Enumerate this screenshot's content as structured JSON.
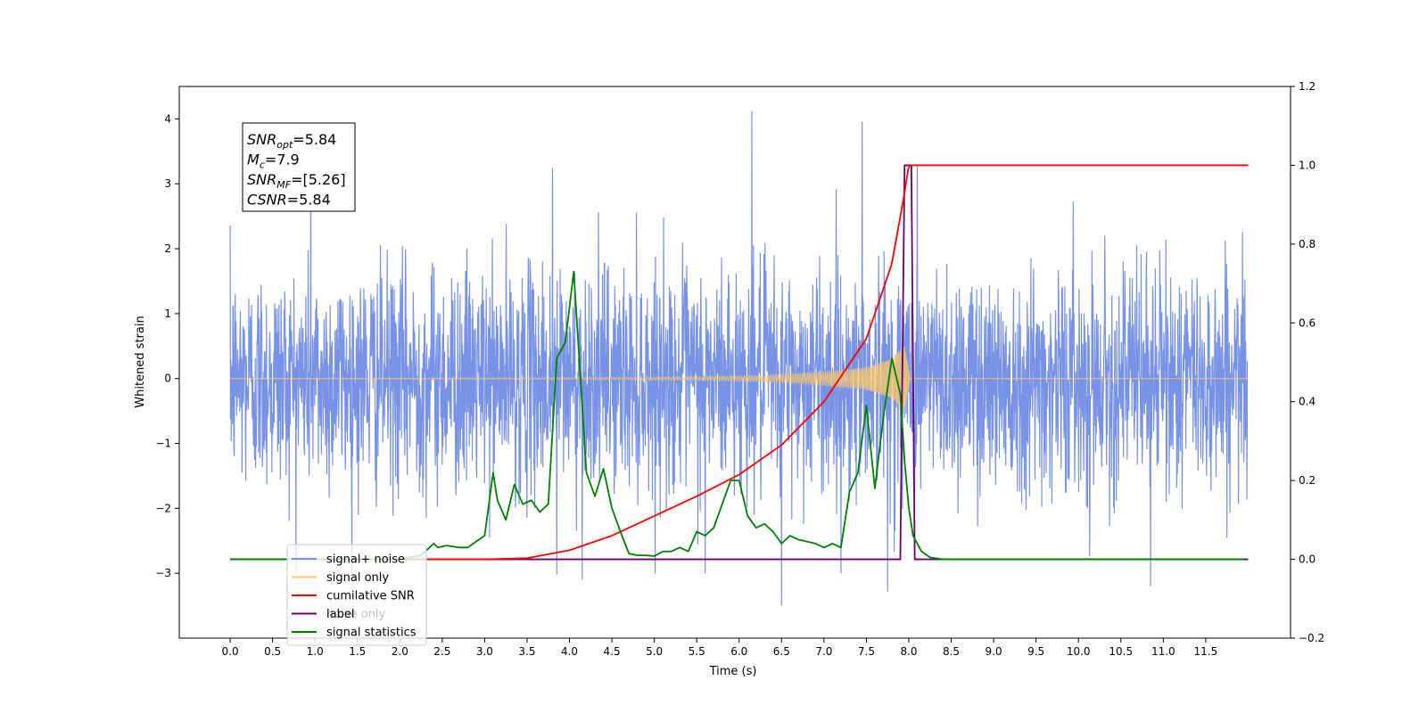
{
  "chart_data": {
    "type": "line",
    "xlabel": "Time (s)",
    "ylabel_left": "Whitened strain",
    "ylabel_right": "",
    "xlim": [
      -0.6,
      12.5
    ],
    "ylim_left": [
      -4.0,
      4.5
    ],
    "ylim_right": [
      -0.2,
      1.2
    ],
    "x_ticks": [
      0.0,
      0.5,
      1.0,
      1.5,
      2.0,
      2.5,
      3.0,
      3.5,
      4.0,
      4.5,
      5.0,
      5.5,
      6.0,
      6.5,
      7.0,
      7.5,
      8.0,
      8.5,
      9.0,
      9.5,
      10.0,
      10.5,
      11.0,
      11.5
    ],
    "x_tick_labels": [
      "0.0",
      "0.5",
      "1.0",
      "1.5",
      "2.0",
      "2.5",
      "3.0",
      "3.5",
      "4.0",
      "4.5",
      "5.0",
      "5.5",
      "6.0",
      "6.5",
      "7.0",
      "7.5",
      "8.0",
      "8.5",
      "9.0",
      "9.5",
      "10.0",
      "10.5",
      "11.0",
      "11.5"
    ],
    "y_left_ticks": [
      -3,
      -2,
      -1,
      0,
      1,
      2,
      3,
      4
    ],
    "y_left_tick_labels": [
      "−3",
      "−2",
      "−1",
      "0",
      "1",
      "2",
      "3",
      "4"
    ],
    "y_right_ticks": [
      -0.2,
      0.0,
      0.2,
      0.4,
      0.6,
      0.8,
      1.0,
      1.2
    ],
    "y_right_tick_labels": [
      "−0.2",
      "0.0",
      "0.2",
      "0.4",
      "0.6",
      "0.8",
      "1.0",
      "1.2"
    ],
    "legend_position": "lower-left",
    "legend": [
      {
        "label": "signal+ noise",
        "color": "#7893e6"
      },
      {
        "label": "signal only",
        "color": "#ffc966"
      },
      {
        "label": "cumilative SNR",
        "color": "#ff0000"
      },
      {
        "label": "label",
        "color": "#6a006a"
      },
      {
        "label": "signal statistics",
        "color": "#008000"
      }
    ],
    "hidden_legend_text": [
      "noise only"
    ],
    "annotation": {
      "lines": [
        {
          "var": "SNR",
          "sub": "opt",
          "value": "=5.84"
        },
        {
          "var": "M",
          "sub": "c",
          "value": "=7.9"
        },
        {
          "var": "SNR",
          "sub": "MF",
          "value": "=[5.26]"
        },
        {
          "var": "CSNR",
          "sub": "",
          "value": "=5.84"
        }
      ]
    },
    "series": [
      {
        "name": "signal+ noise",
        "axis": "left",
        "color": "#7893e6",
        "description_values": {
          "t_start": 0.0,
          "t_end": 11.99,
          "noise_std": 0.85,
          "max": 4.1,
          "min": -3.5
        },
        "spikes": [
          [
            6.15,
            4.12
          ],
          [
            7.45,
            3.95
          ],
          [
            0.95,
            3.8
          ],
          [
            3.8,
            3.25
          ],
          [
            8.1,
            3.3
          ],
          [
            6.5,
            -3.5
          ],
          [
            7.75,
            -3.28
          ],
          [
            10.85,
            -3.2
          ],
          [
            3.85,
            -3.02
          ],
          [
            5.6,
            -3.0
          ],
          [
            7.2,
            -3.0
          ],
          [
            4.15,
            -3.1
          ]
        ]
      },
      {
        "name": "signal only",
        "axis": "left",
        "color": "#ffc966",
        "envelope": [
          [
            0.0,
            0.0
          ],
          [
            3.5,
            0.01
          ],
          [
            4.0,
            0.012
          ],
          [
            5.0,
            0.02
          ],
          [
            6.0,
            0.04
          ],
          [
            6.5,
            0.06
          ],
          [
            7.0,
            0.1
          ],
          [
            7.5,
            0.17
          ],
          [
            7.8,
            0.3
          ],
          [
            7.95,
            0.5
          ],
          [
            8.02,
            0.0
          ],
          [
            12.0,
            0.0
          ]
        ]
      },
      {
        "name": "cumilative SNR",
        "axis": "right",
        "color": "#ff0000",
        "x": [
          0.0,
          3.0,
          3.5,
          4.0,
          4.5,
          5.0,
          5.5,
          6.0,
          6.5,
          7.0,
          7.5,
          7.8,
          7.95,
          8.0,
          12.0
        ],
        "y": [
          0.0,
          0.0,
          0.003,
          0.023,
          0.06,
          0.11,
          0.16,
          0.215,
          0.29,
          0.4,
          0.56,
          0.75,
          0.93,
          1.0,
          1.0
        ]
      },
      {
        "name": "label",
        "axis": "right",
        "color": "#6a006a",
        "x": [
          0.0,
          7.9,
          7.95,
          8.03,
          8.07,
          12.0
        ],
        "y": [
          0.0,
          0.0,
          1.0,
          1.0,
          0.0,
          0.0
        ]
      },
      {
        "name": "signal statistics",
        "axis": "right",
        "color": "#008000",
        "x": [
          0.0,
          1.0,
          2.0,
          2.25,
          2.35,
          2.4,
          2.45,
          2.55,
          2.7,
          2.8,
          2.9,
          3.0,
          3.1,
          3.15,
          3.25,
          3.35,
          3.45,
          3.55,
          3.65,
          3.75,
          3.85,
          3.95,
          4.05,
          4.1,
          4.2,
          4.3,
          4.4,
          4.5,
          4.6,
          4.7,
          4.8,
          4.9,
          5.0,
          5.1,
          5.2,
          5.3,
          5.4,
          5.5,
          5.6,
          5.7,
          5.8,
          5.9,
          6.0,
          6.1,
          6.2,
          6.3,
          6.4,
          6.5,
          6.6,
          6.7,
          6.8,
          6.9,
          7.0,
          7.1,
          7.2,
          7.3,
          7.4,
          7.5,
          7.6,
          7.7,
          7.8,
          7.9,
          7.95,
          8.0,
          8.05,
          8.15,
          8.25,
          8.4,
          9.0,
          10.0,
          11.0,
          11.95
        ],
        "y": [
          0.0,
          0.0,
          0.0,
          0.01,
          0.03,
          0.04,
          0.03,
          0.035,
          0.03,
          0.03,
          0.045,
          0.06,
          0.22,
          0.15,
          0.1,
          0.19,
          0.14,
          0.15,
          0.12,
          0.14,
          0.51,
          0.55,
          0.73,
          0.56,
          0.22,
          0.16,
          0.23,
          0.13,
          0.07,
          0.015,
          0.01,
          0.01,
          0.008,
          0.02,
          0.02,
          0.03,
          0.02,
          0.07,
          0.06,
          0.08,
          0.14,
          0.2,
          0.2,
          0.11,
          0.08,
          0.09,
          0.07,
          0.04,
          0.06,
          0.05,
          0.045,
          0.04,
          0.03,
          0.04,
          0.03,
          0.17,
          0.22,
          0.39,
          0.18,
          0.36,
          0.51,
          0.42,
          0.25,
          0.13,
          0.06,
          0.02,
          0.005,
          0.0,
          0.0,
          0.0,
          0.0,
          0.0
        ]
      }
    ]
  }
}
